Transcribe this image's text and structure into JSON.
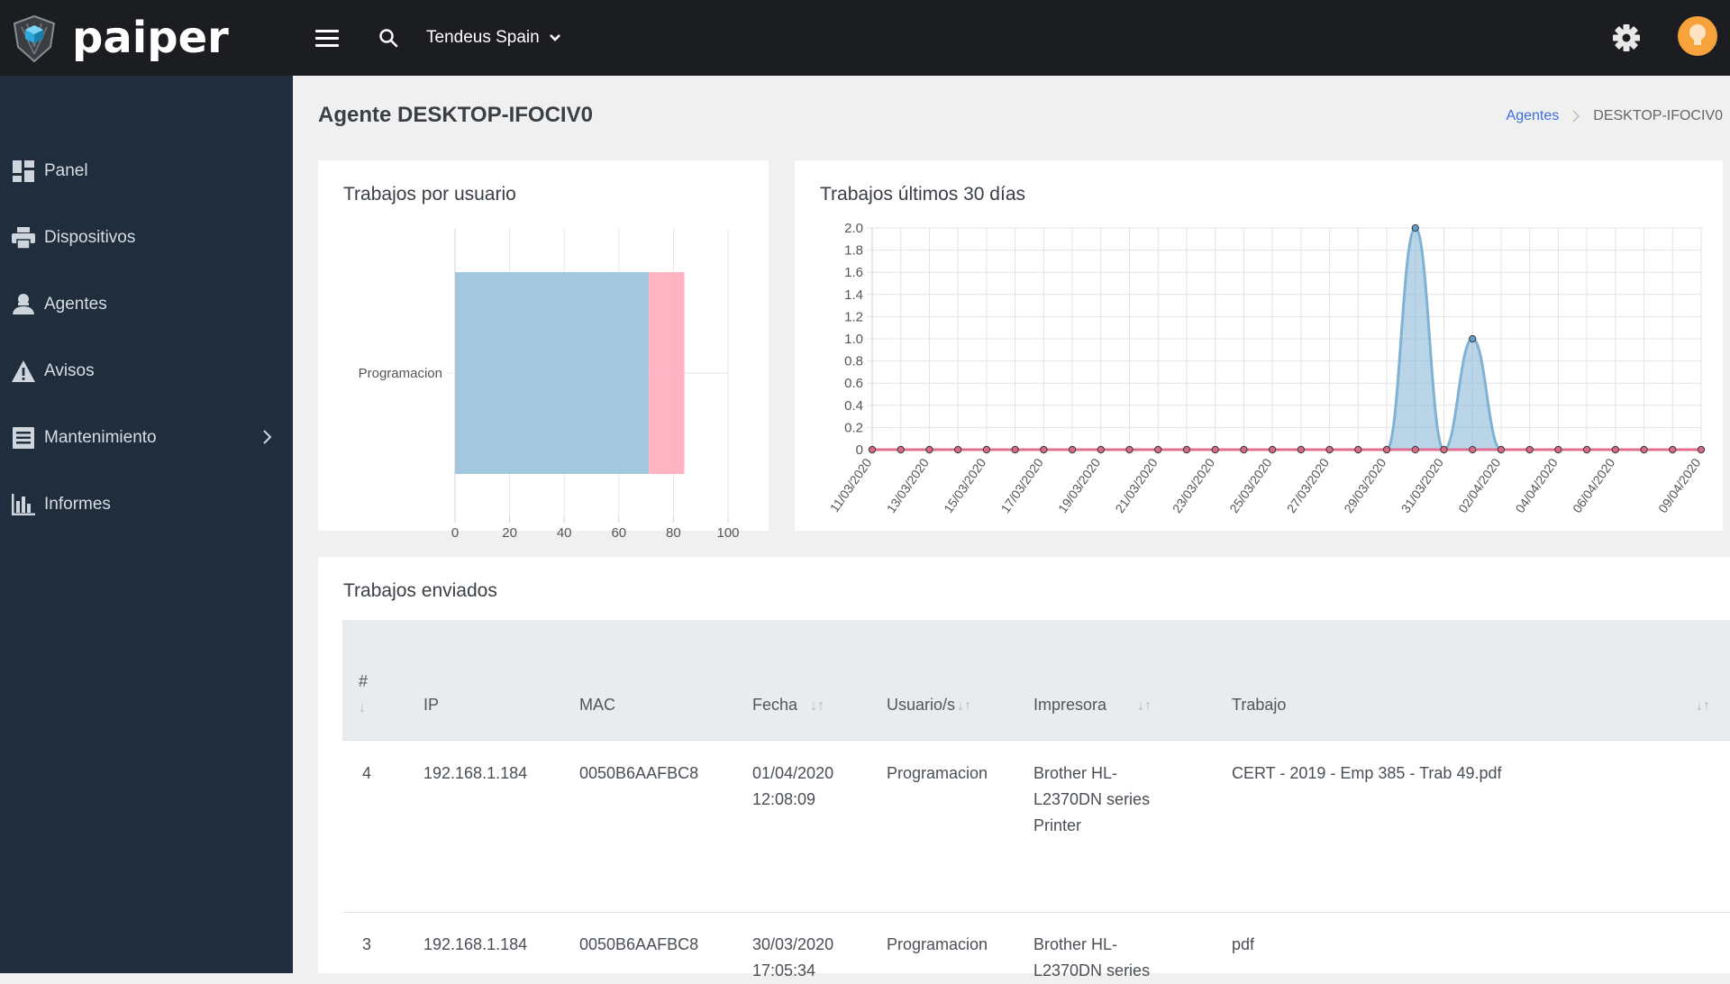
{
  "app": {
    "name": "paiper"
  },
  "topbar": {
    "company": "Tendeus Spain"
  },
  "sidebar": {
    "items": [
      {
        "label": "Panel",
        "icon": "dashboard-icon"
      },
      {
        "label": "Dispositivos",
        "icon": "printer-icon"
      },
      {
        "label": "Agentes",
        "icon": "agent-icon"
      },
      {
        "label": "Avisos",
        "icon": "warning-icon"
      },
      {
        "label": "Mantenimiento",
        "icon": "list-icon"
      },
      {
        "label": "Informes",
        "icon": "bar-chart-icon"
      }
    ]
  },
  "page": {
    "title": "Agente DESKTOP-IFOCIV0",
    "breadcrumb": {
      "link": "Agentes",
      "current": "DESKTOP-IFOCIV0"
    }
  },
  "cards": {
    "by_user_title": "Trabajos por usuario",
    "last30_title": "Trabajos últimos 30 días",
    "sent_title": "Trabajos enviados"
  },
  "chart_data": [
    {
      "type": "bar",
      "orientation": "horizontal",
      "stacked": true,
      "categories": [
        "Programacion"
      ],
      "series": [
        {
          "values": [
            71
          ],
          "color": "#9ec5dc"
        },
        {
          "values": [
            13
          ],
          "color": "#ffb0c1"
        }
      ],
      "xlim": [
        0,
        100
      ],
      "xticks": [
        0,
        20,
        40,
        60,
        80,
        100
      ]
    },
    {
      "type": "area",
      "x": [
        "11/03/2020",
        "12/03/2020",
        "13/03/2020",
        "14/03/2020",
        "15/03/2020",
        "16/03/2020",
        "17/03/2020",
        "18/03/2020",
        "19/03/2020",
        "20/03/2020",
        "21/03/2020",
        "22/03/2020",
        "23/03/2020",
        "24/03/2020",
        "25/03/2020",
        "26/03/2020",
        "27/03/2020",
        "28/03/2020",
        "29/03/2020",
        "30/03/2020",
        "31/03/2020",
        "01/04/2020",
        "02/04/2020",
        "03/04/2020",
        "04/04/2020",
        "05/04/2020",
        "06/04/2020",
        "07/04/2020",
        "08/04/2020",
        "09/04/2020"
      ],
      "xtick_labels": [
        "11/03/2020",
        "13/03/2020",
        "15/03/2020",
        "17/03/2020",
        "19/03/2020",
        "21/03/2020",
        "23/03/2020",
        "25/03/2020",
        "27/03/2020",
        "29/03/2020",
        "31/03/2020",
        "02/04/2020",
        "04/04/2020",
        "06/04/2020",
        "09/04/2020"
      ],
      "series": [
        {
          "values": [
            0,
            0,
            0,
            0,
            0,
            0,
            0,
            0,
            0,
            0,
            0,
            0,
            0,
            0,
            0,
            0,
            0,
            0,
            0,
            2,
            0,
            1,
            0,
            0,
            0,
            0,
            0,
            0,
            0,
            0
          ],
          "color": "#7fb2d3"
        },
        {
          "values": [
            0,
            0,
            0,
            0,
            0,
            0,
            0,
            0,
            0,
            0,
            0,
            0,
            0,
            0,
            0,
            0,
            0,
            0,
            0,
            0,
            0,
            0,
            0,
            0,
            0,
            0,
            0,
            0,
            0,
            0
          ],
          "color": "#e0708e"
        }
      ],
      "ylim": [
        0,
        2.0
      ],
      "yticks": [
        "0",
        "0.2",
        "0.4",
        "0.6",
        "0.8",
        "1.0",
        "1.2",
        "1.4",
        "1.6",
        "1.8",
        "2.0"
      ],
      "grid": true
    }
  ],
  "table": {
    "headers": {
      "num": "#",
      "ip": "IP",
      "mac": "MAC",
      "fecha": "Fecha",
      "usuario": "Usuario/s",
      "impresora": "Impresora",
      "trabajo": "Trabajo"
    },
    "rows": [
      {
        "num": "4",
        "ip": "192.168.1.184",
        "mac": "0050B6AAFBC8",
        "fecha_date": "01/04/2020",
        "fecha_time": "12:08:09",
        "usuario": "Programacion",
        "impresora_1": "Brother HL-",
        "impresora_2": "L2370DN series",
        "impresora_3": "Printer",
        "trabajo": "CERT - 2019 - Emp 385 - Trab 49.pdf"
      },
      {
        "num": "3",
        "ip": "192.168.1.184",
        "mac": "0050B6AAFBC8",
        "fecha_date": "30/03/2020",
        "fecha_time": "17:05:34",
        "usuario": "Programacion",
        "impresora_1": "Brother HL-",
        "impresora_2": "L2370DN series",
        "impresora_3": "",
        "trabajo": "pdf"
      }
    ]
  }
}
